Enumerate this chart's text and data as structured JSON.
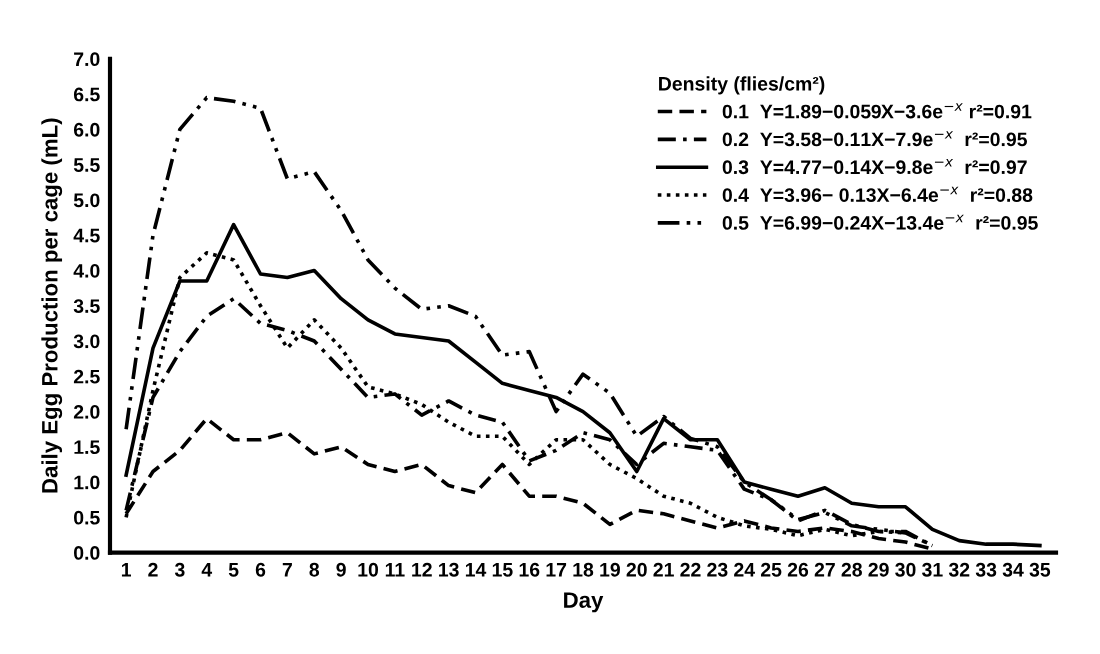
{
  "chart_data": {
    "type": "line",
    "xlabel": "Day",
    "ylabel": "Daily Egg Production per cage (mL)",
    "legend_title": "Density (flies/cm²)",
    "categories": [
      "1",
      "2",
      "3",
      "4",
      "5",
      "6",
      "7",
      "8",
      "9",
      "10",
      "11",
      "12",
      "13",
      "14",
      "15",
      "16",
      "17",
      "18",
      "19",
      "20",
      "21",
      "22",
      "23",
      "24",
      "25",
      "26",
      "27",
      "28",
      "29",
      "30",
      "31",
      "32",
      "33",
      "34",
      "35"
    ],
    "ylim": [
      0.0,
      7.0
    ],
    "yticks": [
      {
        "value": 0,
        "label": "0.0"
      },
      0.5,
      {
        "value": 1,
        "label": "1.0"
      },
      1.5,
      {
        "value": 2,
        "label": "2.0"
      },
      2.5,
      {
        "value": 3,
        "label": "3.0"
      },
      3.5,
      {
        "value": 4,
        "label": "4.0"
      },
      4.5,
      {
        "value": 5,
        "label": "5.0"
      },
      5.5,
      {
        "value": 6,
        "label": "6.0"
      },
      6.5,
      {
        "value": 7,
        "label": "7.0"
      }
    ],
    "grid": false,
    "legend": "top right",
    "marker": "none",
    "series": [
      {
        "name": "0.1  Y=1.89−0.059X−3.6e$^{−x}$ r²=0.91",
        "color": "#000000",
        "line_style": "dashed",
        "values": [
          0.55,
          1.15,
          1.45,
          1.9,
          1.6,
          1.6,
          1.7,
          1.4,
          1.5,
          1.25,
          1.15,
          1.25,
          0.95,
          0.85,
          1.25,
          0.8,
          0.8,
          0.7,
          0.4,
          0.6,
          0.55,
          0.45,
          0.35,
          0.45,
          0.35,
          0.3,
          0.35,
          0.3,
          0.2,
          0.15,
          0.05,
          null,
          null,
          null,
          null
        ]
      },
      {
        "name": "0.2  Y=3.58−0.11X−7.9e$^{−x}$  r²=0.95",
        "color": "#000000",
        "line_style": "dashdot",
        "values": [
          0.6,
          2.2,
          2.85,
          3.35,
          3.6,
          3.25,
          3.15,
          3.0,
          2.6,
          2.2,
          2.25,
          1.95,
          2.15,
          1.95,
          1.85,
          1.3,
          1.45,
          1.7,
          1.6,
          1.25,
          1.55,
          1.5,
          1.45,
          0.9,
          0.75,
          0.45,
          0.6,
          0.4,
          0.3,
          0.3,
          0.1,
          null,
          null,
          null,
          null
        ]
      },
      {
        "name": "0.3  Y=4.77−0.14X−9.8e$^{−x}$  r²=0.97",
        "color": "#000000",
        "line_style": "solid",
        "values": [
          1.1,
          2.9,
          3.85,
          3.85,
          4.65,
          3.95,
          3.9,
          4.0,
          3.6,
          3.3,
          3.1,
          3.05,
          3.0,
          2.7,
          2.4,
          2.3,
          2.2,
          2.0,
          1.7,
          1.15,
          1.9,
          1.6,
          1.6,
          1.0,
          0.9,
          0.8,
          0.92,
          0.7,
          0.65,
          0.65,
          0.33,
          0.17,
          0.12,
          0.12,
          0.1
        ]
      },
      {
        "name": "0.4  Y=3.96− 0.13X−6.4e$^{−x}$  r²=0.88",
        "color": "#000000",
        "line_style": "dotted",
        "values": [
          0.5,
          2.3,
          3.9,
          4.25,
          4.15,
          3.5,
          2.9,
          3.3,
          2.9,
          2.35,
          2.25,
          2.1,
          1.85,
          1.65,
          1.65,
          1.25,
          1.6,
          1.6,
          1.25,
          1.05,
          0.8,
          0.7,
          0.5,
          0.38,
          0.33,
          0.24,
          0.33,
          0.24,
          0.3,
          0.28,
          null,
          null,
          null,
          null,
          null
        ]
      },
      {
        "name": "0.5  Y=6.99−0.24X−13.4e$^{−x}$  r²=0.95",
        "color": "#000000",
        "line_style": "dashdotdot",
        "values": [
          1.75,
          4.5,
          6.0,
          6.45,
          6.4,
          6.3,
          5.3,
          5.4,
          4.85,
          4.15,
          3.75,
          3.45,
          3.5,
          3.35,
          2.8,
          2.85,
          2.0,
          2.53,
          2.26,
          1.65,
          1.93,
          1.62,
          1.5,
          1.0,
          0.75,
          0.47,
          0.57,
          0.38,
          0.33,
          0.28,
          0.1,
          null,
          null,
          null,
          null
        ]
      }
    ]
  }
}
